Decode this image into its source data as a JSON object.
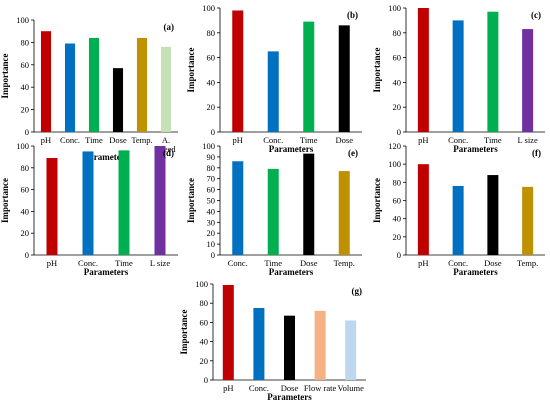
{
  "chart_data": [
    {
      "type": "bar",
      "panel_label": "(a)",
      "xlabel": "Parameters",
      "ylabel": "Importance",
      "ylim": [
        0,
        100
      ],
      "yticks": [
        0,
        20,
        40,
        60,
        80,
        100
      ],
      "categories": [
        "pH",
        "Conc.",
        "Time",
        "Dose",
        "Temp.",
        "A. speed"
      ],
      "values": [
        90,
        79,
        84,
        57,
        84,
        76
      ],
      "colors": [
        "#c00000",
        "#0070c0",
        "#00b050",
        "#000000",
        "#bf9000",
        "#c5e0b4"
      ]
    },
    {
      "type": "bar",
      "panel_label": "(b)",
      "xlabel": "Parameters",
      "ylabel": "Importance",
      "ylim": [
        0,
        100
      ],
      "yticks": [
        0,
        20,
        40,
        60,
        80,
        100
      ],
      "categories": [
        "pH",
        "Conc.",
        "Time",
        "Dose"
      ],
      "values": [
        98,
        65,
        89,
        86
      ],
      "colors": [
        "#c00000",
        "#0070c0",
        "#00b050",
        "#000000"
      ]
    },
    {
      "type": "bar",
      "panel_label": "(c)",
      "xlabel": "Parameters",
      "ylabel": "Importance",
      "ylim": [
        0,
        100
      ],
      "yticks": [
        0,
        20,
        40,
        60,
        80,
        100
      ],
      "categories": [
        "pH",
        "Conc.",
        "Time",
        "L size"
      ],
      "values": [
        100,
        90,
        97,
        83
      ],
      "colors": [
        "#c00000",
        "#0070c0",
        "#00b050",
        "#7030a0"
      ]
    },
    {
      "type": "bar",
      "panel_label": "(d)",
      "xlabel": "Parameters",
      "ylabel": "Importance",
      "ylim": [
        0,
        100
      ],
      "yticks": [
        0,
        20,
        40,
        60,
        80,
        100
      ],
      "categories": [
        "pH",
        "Conc.",
        "Time",
        "L size"
      ],
      "values": [
        89,
        95,
        96,
        100
      ],
      "colors": [
        "#c00000",
        "#0070c0",
        "#00b050",
        "#7030a0"
      ]
    },
    {
      "type": "bar",
      "panel_label": "(e)",
      "xlabel": "Parameters",
      "ylabel": "Importance",
      "ylim": [
        0,
        100
      ],
      "yticks": [
        0,
        10,
        20,
        30,
        40,
        50,
        60,
        70,
        80,
        90,
        100
      ],
      "categories": [
        "Conc.",
        "Time",
        "Dose",
        "Temp."
      ],
      "values": [
        86,
        79,
        93,
        77
      ],
      "colors": [
        "#0070c0",
        "#00b050",
        "#000000",
        "#bf9000"
      ]
    },
    {
      "type": "bar",
      "panel_label": "(f)",
      "xlabel": "Parameters",
      "ylabel": "Importance",
      "ylim": [
        0,
        120
      ],
      "yticks": [
        0,
        20,
        40,
        60,
        80,
        100,
        120
      ],
      "categories": [
        "pH",
        "Conc.",
        "Dose",
        "Temp."
      ],
      "values": [
        100,
        76,
        88,
        75
      ],
      "colors": [
        "#c00000",
        "#0070c0",
        "#000000",
        "#bf9000"
      ]
    },
    {
      "type": "bar",
      "panel_label": "(g)",
      "xlabel": "Parameters",
      "ylabel": "Importance",
      "ylim": [
        0,
        100
      ],
      "yticks": [
        0,
        20,
        40,
        60,
        80,
        100
      ],
      "categories": [
        "pH",
        "Conc.",
        "Dose",
        "Flow rate",
        "Volume"
      ],
      "values": [
        99,
        75,
        67,
        72,
        62
      ],
      "colors": [
        "#c00000",
        "#0070c0",
        "#000000",
        "#f4b183",
        "#bdd7ee"
      ]
    }
  ]
}
